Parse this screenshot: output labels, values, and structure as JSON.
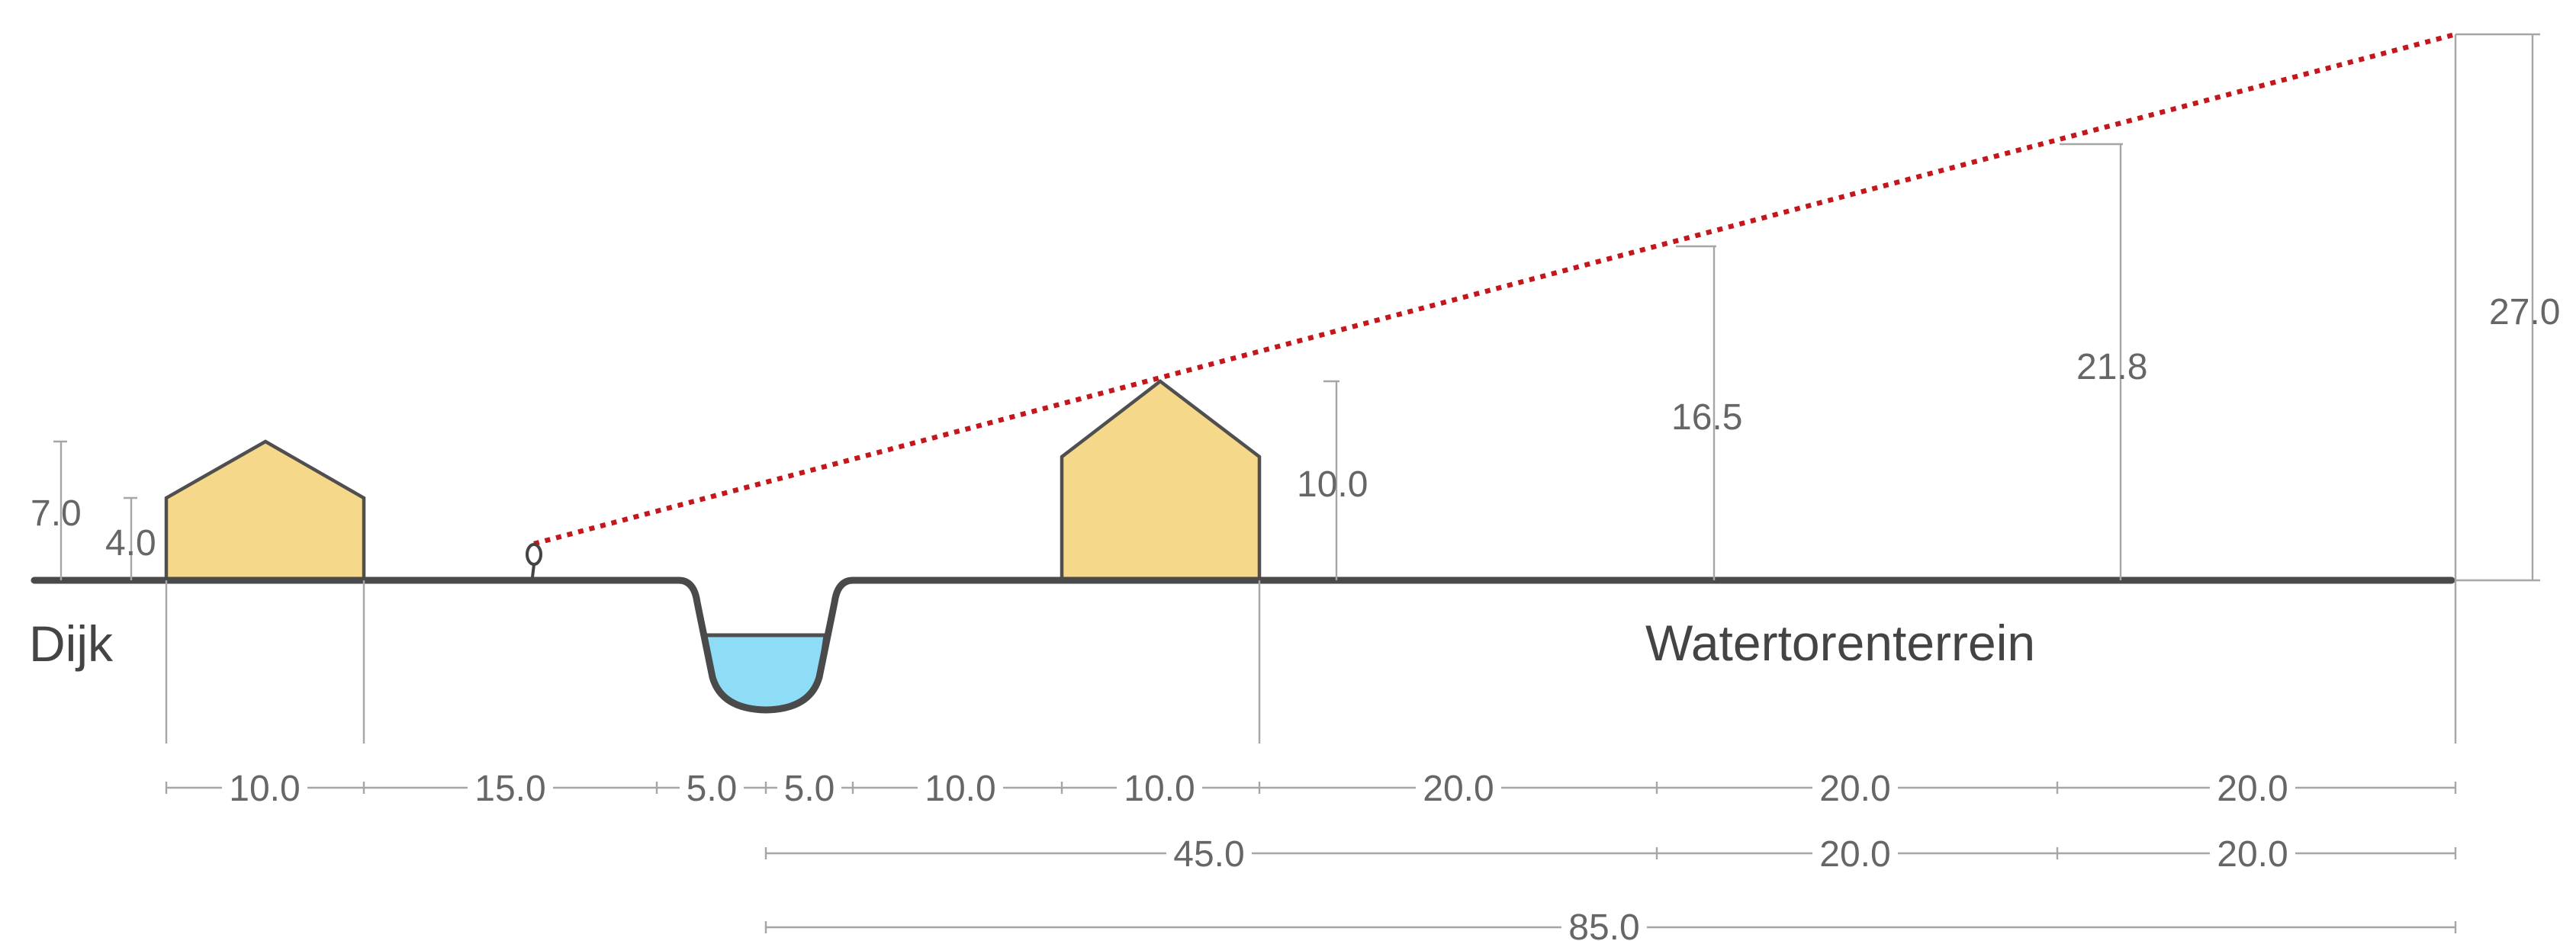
{
  "labels": {
    "dike": "Dijk",
    "water_tower_site": "Watertorenterrein"
  },
  "heights": {
    "dike_house_total": "7.0",
    "dike_house_wall": "4.0",
    "house_2": "10.0",
    "point_1": "16.5",
    "point_2": "21.8",
    "point_3": "27.0"
  },
  "spans_row_1": [
    "10.0",
    "15.0",
    "5.0",
    "5.0",
    "10.0",
    "10.0",
    "20.0",
    "20.0",
    "20.0"
  ],
  "spans_row_2": [
    "45.0",
    "20.0",
    "20.0"
  ],
  "spans_row_3": [
    "85.0"
  ],
  "colors": {
    "house_fill": "#f6d88a",
    "water_fill": "#8fdcf7",
    "sight_line": "#c4161c",
    "ground": "#4a4a4a",
    "dimension": "#a6a6a6"
  },
  "icons": {
    "observer": "observer-eye-icon"
  }
}
